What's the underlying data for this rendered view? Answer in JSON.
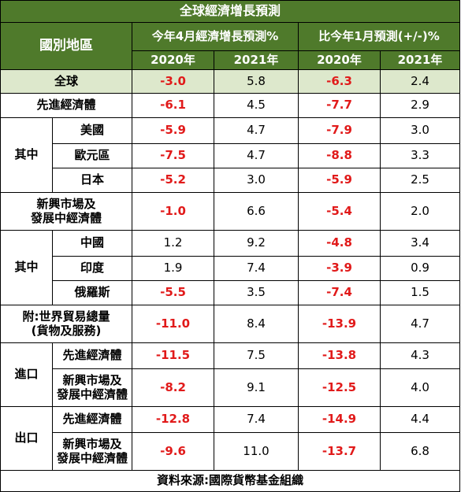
{
  "title": "全球經濟增長預測",
  "header": {
    "region": "國別地區",
    "group1": "今年4月經濟增長預測%",
    "group2": "比今年1月預測(+/-)%",
    "years": [
      "2020年",
      "2021年",
      "2020年",
      "2021年"
    ]
  },
  "rows": [
    {
      "label": "全球",
      "values": [
        "-3.0",
        "5.8",
        "-6.3",
        "2.4"
      ]
    },
    {
      "label": "先進經濟體",
      "values": [
        "-6.1",
        "4.5",
        "-7.7",
        "2.9"
      ]
    },
    {
      "group": "其中",
      "label": "美國",
      "values": [
        "-5.9",
        "4.7",
        "-7.9",
        "3.0"
      ]
    },
    {
      "label": "歐元區",
      "values": [
        "-7.5",
        "4.7",
        "-8.8",
        "3.3"
      ]
    },
    {
      "label": "日本",
      "values": [
        "-5.2",
        "3.0",
        "-5.9",
        "2.5"
      ]
    },
    {
      "label": "新興市場及\n發展中經濟體",
      "values": [
        "-1.0",
        "6.6",
        "-5.4",
        "2.0"
      ]
    },
    {
      "group": "其中",
      "label": "中國",
      "values": [
        "1.2",
        "9.2",
        "-4.8",
        "3.4"
      ]
    },
    {
      "label": "印度",
      "values": [
        "1.9",
        "7.4",
        "-3.9",
        "0.9"
      ]
    },
    {
      "label": "俄羅斯",
      "values": [
        "-5.5",
        "3.5",
        "-7.4",
        "1.5"
      ]
    },
    {
      "label": "附:世界貿易總量\n(貨物及服務)",
      "values": [
        "-11.0",
        "8.4",
        "-13.9",
        "4.7"
      ]
    },
    {
      "group": "進口",
      "label": "先進經濟體",
      "values": [
        "-11.5",
        "7.5",
        "-13.8",
        "4.3"
      ]
    },
    {
      "label": "新興市場及\n發展中經濟體",
      "values": [
        "-8.2",
        "9.1",
        "-12.5",
        "4.0"
      ]
    },
    {
      "group": "出口",
      "label": "先進經濟體",
      "values": [
        "-12.8",
        "7.4",
        "-14.9",
        "4.4"
      ]
    },
    {
      "label": "新興市場及\n發展中經濟體",
      "values": [
        "-9.6",
        "11.0",
        "-13.7",
        "6.8"
      ]
    }
  ],
  "source": "資料來源:國際貨幣基金組織",
  "colors": {
    "header_bg": "#4f7a2b",
    "highlight_row": "#dde8cc",
    "negative": "#e11a1a"
  }
}
